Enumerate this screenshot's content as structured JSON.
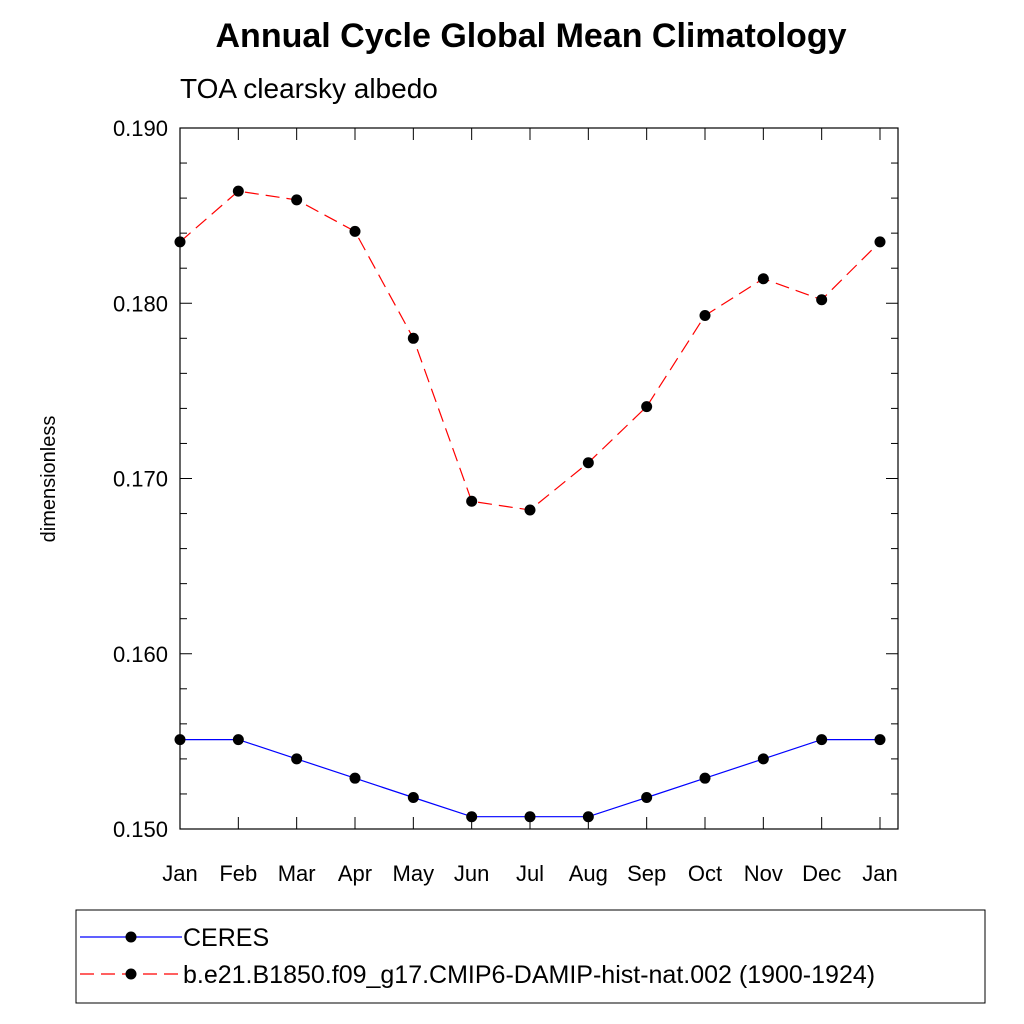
{
  "chart_data": {
    "type": "line",
    "title": "Annual Cycle Global Mean Climatology",
    "subtitle": "TOA clearsky albedo",
    "ylabel": "dimensionless",
    "xlabel": "",
    "categories": [
      "Jan",
      "Feb",
      "Mar",
      "Apr",
      "May",
      "Jun",
      "Jul",
      "Aug",
      "Sep",
      "Oct",
      "Nov",
      "Dec",
      "Jan"
    ],
    "ylim": [
      0.15,
      0.19
    ],
    "yticks": [
      "0.150",
      "0.160",
      "0.170",
      "0.180",
      "0.190"
    ],
    "series": [
      {
        "name": "CERES",
        "color": "#0000ff",
        "line_style": "solid",
        "marker": "circle",
        "values": [
          0.1551,
          0.1551,
          0.154,
          0.1529,
          0.1518,
          0.1507,
          0.1507,
          0.1507,
          0.1518,
          0.1529,
          0.154,
          0.1551,
          0.1551
        ]
      },
      {
        "name": "b.e21.B1850.f09_g17.CMIP6-DAMIP-hist-nat.002 (1900-1924)",
        "color": "#ff0000",
        "line_style": "dashed",
        "marker": "circle",
        "values": [
          0.1835,
          0.1864,
          0.1859,
          0.1841,
          0.178,
          0.1687,
          0.1682,
          0.1709,
          0.1741,
          0.1793,
          0.1814,
          0.1802,
          0.1835
        ]
      }
    ],
    "grid": false,
    "legend_placement": "bottom"
  }
}
